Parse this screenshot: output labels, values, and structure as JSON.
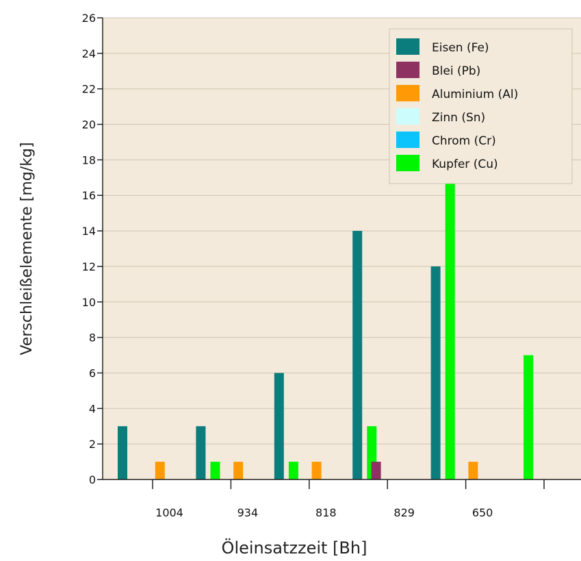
{
  "chart_data": {
    "type": "bar",
    "title": "",
    "xlabel": "Öleinsatzzeit [Bh]",
    "ylabel": "Verschleißelemente [mg/kg]",
    "categories": [
      "1004",
      "934",
      "818",
      "829",
      "650"
    ],
    "ylim": [
      0,
      26
    ],
    "yticks": [
      0,
      2,
      4,
      6,
      8,
      10,
      12,
      14,
      16,
      18,
      20,
      22,
      24,
      26
    ],
    "grid": true,
    "legend_position": "top-right",
    "plot_background": "#f3eadb",
    "series": [
      {
        "name": "Eisen (Fe)",
        "color": "#0b7d7d",
        "values": [
          3,
          3,
          6,
          14,
          12
        ]
      },
      {
        "name": "Blei (Pb)",
        "color": "#8e3262",
        "values": [
          0,
          0,
          0,
          1,
          0
        ]
      },
      {
        "name": "Aluminium (Al)",
        "color": "#ff9a06",
        "values": [
          1,
          1,
          1,
          0,
          1
        ]
      },
      {
        "name": "Zinn (Sn)",
        "color": "#ccfcfc",
        "values": [
          0,
          0,
          0,
          0,
          0
        ]
      },
      {
        "name": "Chrom (Cr)",
        "color": "#0ac4fb",
        "values": [
          0,
          0,
          0,
          0,
          0
        ]
      },
      {
        "name": "Kupfer (Cu)",
        "color": "#00f500",
        "values": [
          1,
          1,
          3,
          17,
          7
        ]
      }
    ]
  }
}
